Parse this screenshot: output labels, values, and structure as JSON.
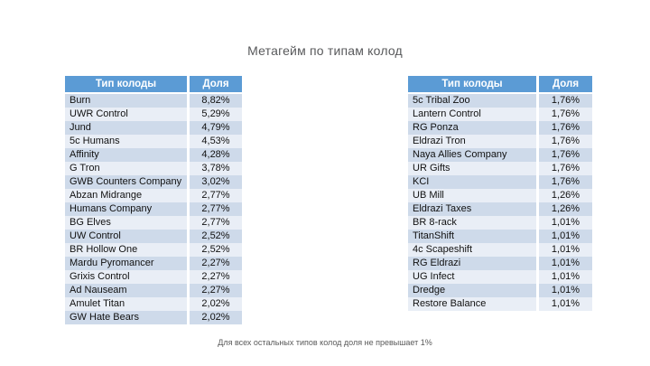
{
  "title": "Метагейм по типам колод",
  "footnote": "Для всех остальных типов колод доля не превышает 1%",
  "colors": {
    "header_bg": "#5b9bd5",
    "header_text": "#ffffff",
    "row_band_dark": "#cedaea",
    "row_band_light": "#e9eef6",
    "title_text": "#58595b",
    "footnote_text": "#595959"
  },
  "tables": [
    {
      "name": "left-deck-table",
      "headers": [
        "Тип колоды",
        "Доля"
      ],
      "rows": [
        [
          "Burn",
          "8,82%"
        ],
        [
          "UWR Control",
          "5,29%"
        ],
        [
          "Jund",
          "4,79%"
        ],
        [
          "5c Humans",
          "4,53%"
        ],
        [
          "Affinity",
          "4,28%"
        ],
        [
          "G Tron",
          "3,78%"
        ],
        [
          "GWB Counters Company",
          "3,02%"
        ],
        [
          "Abzan Midrange",
          "2,77%"
        ],
        [
          "Humans Company",
          "2,77%"
        ],
        [
          "BG Elves",
          "2,77%"
        ],
        [
          "UW Control",
          "2,52%"
        ],
        [
          "BR Hollow One",
          "2,52%"
        ],
        [
          "Mardu Pyromancer",
          "2,27%"
        ],
        [
          "Grixis Control",
          "2,27%"
        ],
        [
          "Ad Nauseam",
          "2,27%"
        ],
        [
          "Amulet Titan",
          "2,02%"
        ],
        [
          "GW Hate Bears",
          "2,02%"
        ]
      ]
    },
    {
      "name": "right-deck-table",
      "headers": [
        "Тип колоды",
        "Доля"
      ],
      "rows": [
        [
          "5c Tribal Zoo",
          "1,76%"
        ],
        [
          "Lantern Control",
          "1,76%"
        ],
        [
          "RG Ponza",
          "1,76%"
        ],
        [
          "Eldrazi Tron",
          "1,76%"
        ],
        [
          "Naya Allies Company",
          "1,76%"
        ],
        [
          "UR Gifts",
          "1,76%"
        ],
        [
          "KCI",
          "1,76%"
        ],
        [
          "UB Mill",
          "1,26%"
        ],
        [
          "Eldrazi Taxes",
          "1,26%"
        ],
        [
          "BR 8-rack",
          "1,01%"
        ],
        [
          "TitanShift",
          "1,01%"
        ],
        [
          "4c Scapeshift",
          "1,01%"
        ],
        [
          "RG Eldrazi",
          "1,01%"
        ],
        [
          "UG Infect",
          "1,01%"
        ],
        [
          "Dredge",
          "1,01%"
        ],
        [
          "Restore Balance",
          "1,01%"
        ]
      ]
    }
  ]
}
